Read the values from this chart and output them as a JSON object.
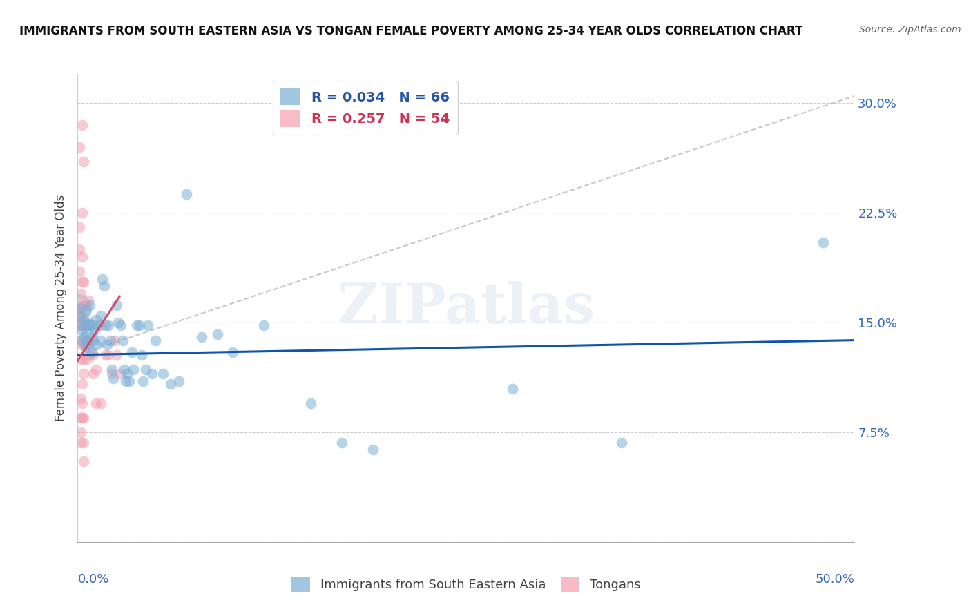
{
  "title": "IMMIGRANTS FROM SOUTH EASTERN ASIA VS TONGAN FEMALE POVERTY AMONG 25-34 YEAR OLDS CORRELATION CHART",
  "source": "Source: ZipAtlas.com",
  "ylabel": "Female Poverty Among 25-34 Year Olds",
  "ytick_labels": [
    "",
    "7.5%",
    "15.0%",
    "22.5%",
    "30.0%"
  ],
  "ytick_vals": [
    0.0,
    0.075,
    0.15,
    0.225,
    0.3
  ],
  "xlim": [
    0.0,
    0.5
  ],
  "ylim": [
    0.0,
    0.32
  ],
  "watermark": "ZIPatlas",
  "legend_r1": "R = 0.034   N = 66",
  "legend_r2": "R = 0.257   N = 54",
  "blue_color": "#7BAFD4",
  "pink_color": "#F4A0B0",
  "trend_blue_color": "#1155AA",
  "trend_pink_color": "#DD4466",
  "dashed_color": "#BBBBBB",
  "blue_scatter": [
    [
      0.001,
      0.155
    ],
    [
      0.002,
      0.148
    ],
    [
      0.002,
      0.16
    ],
    [
      0.003,
      0.145
    ],
    [
      0.003,
      0.138
    ],
    [
      0.004,
      0.152
    ],
    [
      0.004,
      0.14
    ],
    [
      0.005,
      0.148
    ],
    [
      0.005,
      0.133
    ],
    [
      0.005,
      0.158
    ],
    [
      0.006,
      0.143
    ],
    [
      0.006,
      0.138
    ],
    [
      0.007,
      0.15
    ],
    [
      0.007,
      0.135
    ],
    [
      0.008,
      0.148
    ],
    [
      0.008,
      0.162
    ],
    [
      0.009,
      0.14
    ],
    [
      0.009,
      0.13
    ],
    [
      0.01,
      0.148
    ],
    [
      0.01,
      0.138
    ],
    [
      0.011,
      0.145
    ],
    [
      0.012,
      0.152
    ],
    [
      0.012,
      0.135
    ],
    [
      0.013,
      0.148
    ],
    [
      0.015,
      0.155
    ],
    [
      0.015,
      0.138
    ],
    [
      0.016,
      0.18
    ],
    [
      0.017,
      0.175
    ],
    [
      0.018,
      0.148
    ],
    [
      0.019,
      0.135
    ],
    [
      0.02,
      0.148
    ],
    [
      0.021,
      0.138
    ],
    [
      0.022,
      0.118
    ],
    [
      0.023,
      0.112
    ],
    [
      0.025,
      0.162
    ],
    [
      0.026,
      0.15
    ],
    [
      0.028,
      0.148
    ],
    [
      0.029,
      0.138
    ],
    [
      0.03,
      0.118
    ],
    [
      0.031,
      0.11
    ],
    [
      0.032,
      0.115
    ],
    [
      0.033,
      0.11
    ],
    [
      0.035,
      0.13
    ],
    [
      0.036,
      0.118
    ],
    [
      0.038,
      0.148
    ],
    [
      0.04,
      0.148
    ],
    [
      0.041,
      0.128
    ],
    [
      0.042,
      0.11
    ],
    [
      0.044,
      0.118
    ],
    [
      0.045,
      0.148
    ],
    [
      0.048,
      0.115
    ],
    [
      0.05,
      0.138
    ],
    [
      0.055,
      0.115
    ],
    [
      0.06,
      0.108
    ],
    [
      0.065,
      0.11
    ],
    [
      0.07,
      0.238
    ],
    [
      0.08,
      0.14
    ],
    [
      0.09,
      0.142
    ],
    [
      0.1,
      0.13
    ],
    [
      0.12,
      0.148
    ],
    [
      0.15,
      0.095
    ],
    [
      0.17,
      0.068
    ],
    [
      0.19,
      0.063
    ],
    [
      0.28,
      0.105
    ],
    [
      0.35,
      0.068
    ],
    [
      0.48,
      0.205
    ]
  ],
  "pink_scatter": [
    [
      0.001,
      0.27
    ],
    [
      0.001,
      0.215
    ],
    [
      0.001,
      0.185
    ],
    [
      0.001,
      0.2
    ],
    [
      0.002,
      0.17
    ],
    [
      0.002,
      0.148
    ],
    [
      0.002,
      0.138
    ],
    [
      0.002,
      0.125
    ],
    [
      0.002,
      0.155
    ],
    [
      0.002,
      0.098
    ],
    [
      0.002,
      0.085
    ],
    [
      0.002,
      0.075
    ],
    [
      0.002,
      0.068
    ],
    [
      0.003,
      0.285
    ],
    [
      0.003,
      0.225
    ],
    [
      0.003,
      0.195
    ],
    [
      0.003,
      0.178
    ],
    [
      0.003,
      0.162
    ],
    [
      0.003,
      0.148
    ],
    [
      0.003,
      0.135
    ],
    [
      0.003,
      0.108
    ],
    [
      0.003,
      0.095
    ],
    [
      0.003,
      0.085
    ],
    [
      0.004,
      0.26
    ],
    [
      0.004,
      0.178
    ],
    [
      0.004,
      0.162
    ],
    [
      0.004,
      0.148
    ],
    [
      0.004,
      0.135
    ],
    [
      0.004,
      0.125
    ],
    [
      0.004,
      0.115
    ],
    [
      0.004,
      0.085
    ],
    [
      0.004,
      0.068
    ],
    [
      0.004,
      0.055
    ],
    [
      0.005,
      0.162
    ],
    [
      0.005,
      0.148
    ],
    [
      0.005,
      0.135
    ],
    [
      0.006,
      0.138
    ],
    [
      0.006,
      0.125
    ],
    [
      0.007,
      0.165
    ],
    [
      0.007,
      0.148
    ],
    [
      0.008,
      0.148
    ],
    [
      0.008,
      0.128
    ],
    [
      0.01,
      0.128
    ],
    [
      0.01,
      0.115
    ],
    [
      0.012,
      0.118
    ],
    [
      0.012,
      0.095
    ],
    [
      0.015,
      0.148
    ],
    [
      0.015,
      0.095
    ],
    [
      0.018,
      0.128
    ],
    [
      0.02,
      0.128
    ],
    [
      0.022,
      0.115
    ],
    [
      0.024,
      0.138
    ],
    [
      0.025,
      0.128
    ],
    [
      0.028,
      0.115
    ]
  ],
  "blue_line_x": [
    0.0,
    0.5
  ],
  "blue_line_y": [
    0.128,
    0.138
  ],
  "pink_line_x": [
    0.0,
    0.027
  ],
  "pink_line_y": [
    0.124,
    0.168
  ],
  "dashed_line_x": [
    0.0,
    0.5
  ],
  "dashed_line_y": [
    0.128,
    0.305
  ]
}
